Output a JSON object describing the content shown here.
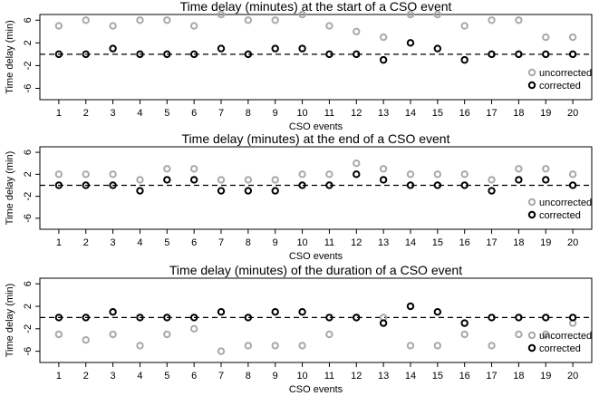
{
  "colors": {
    "uncorrected": "#a9a9a9",
    "corrected": "#000000"
  },
  "chart_data": [
    {
      "type": "scatter",
      "title": "Time delay (minutes) at the start of a CSO event",
      "xlabel": "CSO events",
      "ylabel": "Time delay (min)",
      "x": [
        1,
        2,
        3,
        4,
        5,
        6,
        7,
        8,
        9,
        10,
        11,
        12,
        13,
        14,
        15,
        16,
        17,
        18,
        19,
        20
      ],
      "xticks": [
        "1",
        "2",
        "3",
        "4",
        "5",
        "6",
        "7",
        "8",
        "9",
        "10",
        "11",
        "12",
        "13",
        "14",
        "15",
        "16",
        "17",
        "18",
        "19",
        "20"
      ],
      "xlim": [
        0.3,
        20.7
      ],
      "ylim": [
        -8,
        7
      ],
      "yticks": [
        "-6",
        "-2",
        "2",
        "6"
      ],
      "reference_line_y": 0,
      "legend": "bottom-right",
      "series": [
        {
          "name": "uncorrected",
          "values": [
            5,
            6,
            5,
            6,
            6,
            5,
            7,
            6,
            6,
            7,
            5,
            4,
            3,
            7,
            7,
            5,
            6,
            6,
            3,
            3
          ]
        },
        {
          "name": "corrected",
          "values": [
            0,
            0,
            1,
            0,
            0,
            0,
            1,
            0,
            1,
            1,
            0,
            0,
            -1,
            2,
            1,
            -1,
            0,
            0,
            0,
            0
          ]
        }
      ]
    },
    {
      "type": "scatter",
      "title": "Time delay (minutes) at the end of a CSO event",
      "xlabel": "CSO events",
      "ylabel": "Time delay (min)",
      "x": [
        1,
        2,
        3,
        4,
        5,
        6,
        7,
        8,
        9,
        10,
        11,
        12,
        13,
        14,
        15,
        16,
        17,
        18,
        19,
        20
      ],
      "xticks": [
        "1",
        "2",
        "3",
        "4",
        "5",
        "6",
        "7",
        "8",
        "9",
        "10",
        "11",
        "12",
        "13",
        "14",
        "15",
        "16",
        "17",
        "18",
        "19",
        "20"
      ],
      "xlim": [
        0.3,
        20.7
      ],
      "ylim": [
        -8,
        7
      ],
      "yticks": [
        "-6",
        "-2",
        "2",
        "6"
      ],
      "reference_line_y": 0,
      "legend": "bottom-right",
      "series": [
        {
          "name": "uncorrected",
          "values": [
            2,
            2,
            2,
            1,
            3,
            3,
            1,
            1,
            1,
            2,
            2,
            4,
            3,
            2,
            2,
            2,
            1,
            3,
            3,
            2
          ]
        },
        {
          "name": "corrected",
          "values": [
            0,
            0,
            0,
            -1,
            1,
            1,
            -1,
            -1,
            -1,
            0,
            0,
            2,
            1,
            0,
            0,
            0,
            -1,
            1,
            1,
            0
          ]
        }
      ]
    },
    {
      "type": "scatter",
      "title": "Time delay (minutes) of the duration of a CSO event",
      "xlabel": "CSO events",
      "ylabel": "Time delay (min)",
      "x": [
        1,
        2,
        3,
        4,
        5,
        6,
        7,
        8,
        9,
        10,
        11,
        12,
        13,
        14,
        15,
        16,
        17,
        18,
        19,
        20
      ],
      "xticks": [
        "1",
        "2",
        "3",
        "4",
        "5",
        "6",
        "7",
        "8",
        "9",
        "10",
        "11",
        "12",
        "13",
        "14",
        "15",
        "16",
        "17",
        "18",
        "19",
        "20"
      ],
      "xlim": [
        0.3,
        20.7
      ],
      "ylim": [
        -8,
        7
      ],
      "yticks": [
        "-6",
        "-2",
        "2",
        "6"
      ],
      "reference_line_y": 0,
      "legend": "bottom-right",
      "series": [
        {
          "name": "uncorrected",
          "values": [
            -3,
            -4,
            -3,
            -5,
            -3,
            -2,
            -6,
            -5,
            -5,
            -5,
            -3,
            0,
            0,
            -5,
            -5,
            -3,
            -5,
            -3,
            -3,
            -1
          ]
        },
        {
          "name": "corrected",
          "values": [
            0,
            0,
            1,
            0,
            0,
            0,
            1,
            0,
            1,
            1,
            0,
            0,
            -1,
            2,
            1,
            -1,
            0,
            0,
            0,
            0
          ]
        }
      ]
    }
  ]
}
